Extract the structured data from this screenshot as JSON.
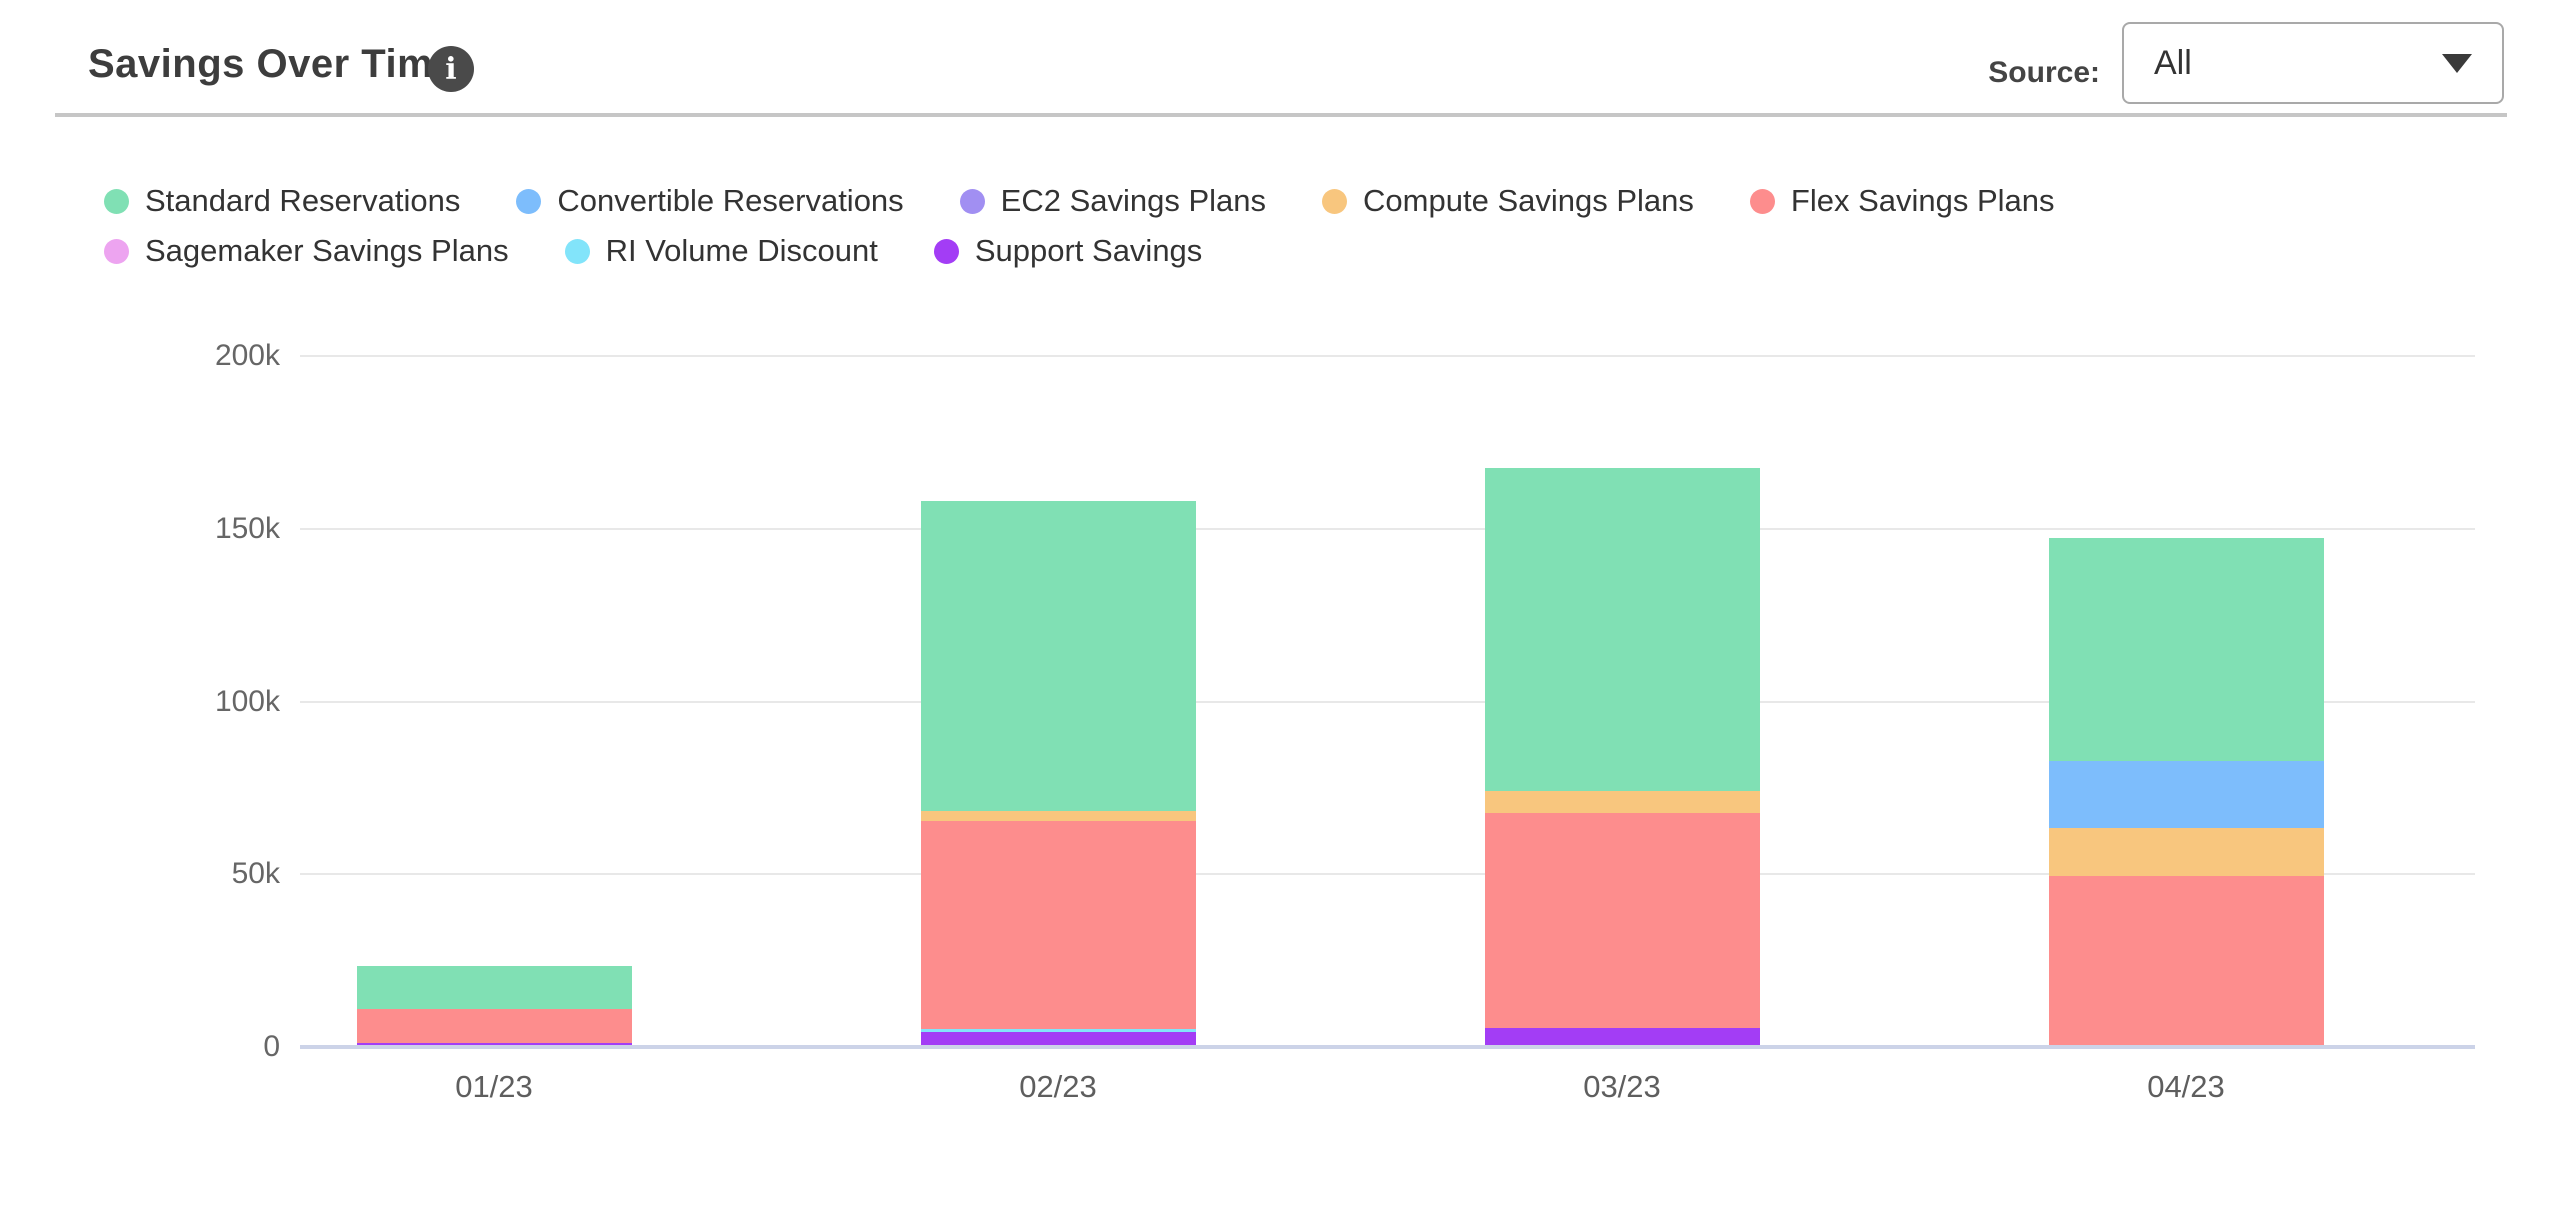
{
  "header": {
    "title": "Savings Over Time",
    "source_label": "Source:",
    "source_value": "All"
  },
  "legend": [
    {
      "label": "Standard Reservations",
      "color": "#80e0b4"
    },
    {
      "label": "Convertible Reservations",
      "color": "#7dbdfc"
    },
    {
      "label": "EC2 Savings Plans",
      "color": "#a18ff2"
    },
    {
      "label": "Compute Savings Plans",
      "color": "#f8c67e"
    },
    {
      "label": "Flex Savings Plans",
      "color": "#fd8d8d"
    },
    {
      "label": "Sagemaker Savings Plans",
      "color": "#eda4f0"
    },
    {
      "label": "RI Volume Discount",
      "color": "#82e4fa"
    },
    {
      "label": "Support Savings",
      "color": "#a33df5"
    }
  ],
  "chart_data": {
    "type": "bar",
    "stacked": true,
    "title": "Savings Over Time",
    "xlabel": "",
    "ylabel": "",
    "categories": [
      "01/23",
      "02/23",
      "03/23",
      "04/23"
    ],
    "series": [
      {
        "name": "Standard Reservations",
        "color": "#80e0b4",
        "values": [
          12400,
          89700,
          93400,
          64500
        ]
      },
      {
        "name": "Convertible Reservations",
        "color": "#7dbdfc",
        "values": [
          0,
          0,
          0,
          19400
        ]
      },
      {
        "name": "EC2 Savings Plans",
        "color": "#a18ff2",
        "values": [
          0,
          0,
          0,
          0
        ]
      },
      {
        "name": "Compute Savings Plans",
        "color": "#f8c67e",
        "values": [
          0,
          2900,
          6500,
          13900
        ]
      },
      {
        "name": "Flex Savings Plans",
        "color": "#fd8d8d",
        "values": [
          9700,
          60100,
          62100,
          49600
        ]
      },
      {
        "name": "Sagemaker Savings Plans",
        "color": "#eda4f0",
        "values": [
          0,
          0,
          0,
          0
        ]
      },
      {
        "name": "RI Volume Discount",
        "color": "#82e4fa",
        "values": [
          0,
          900,
          0,
          0
        ]
      },
      {
        "name": "Support Savings",
        "color": "#a33df5",
        "values": [
          1300,
          4400,
          5500,
          0
        ]
      }
    ],
    "stack_order_bottom_to_top": [
      "Support Savings",
      "RI Volume Discount",
      "Sagemaker Savings Plans",
      "Flex Savings Plans",
      "Compute Savings Plans",
      "EC2 Savings Plans",
      "Convertible Reservations",
      "Standard Reservations"
    ],
    "ylim": [
      0,
      200000
    ],
    "yticks": [
      {
        "label": "200k",
        "value": 200000
      },
      {
        "label": "150k",
        "value": 150000
      },
      {
        "label": "100k",
        "value": 100000
      },
      {
        "label": "50k",
        "value": 50000
      },
      {
        "label": "0",
        "value": 0
      }
    ],
    "grid": true,
    "legend_position": "top"
  }
}
